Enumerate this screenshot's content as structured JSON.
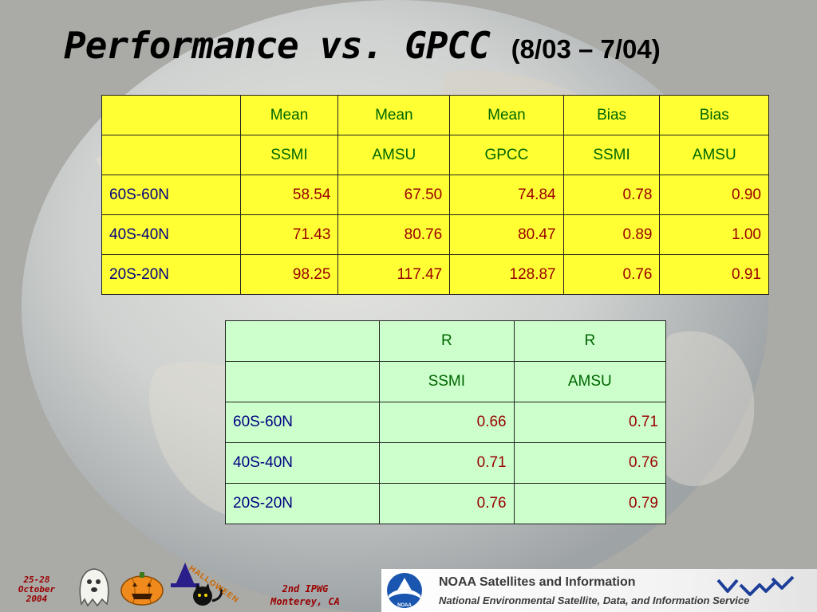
{
  "slide": {
    "title": "Performance vs. GPCC",
    "title_range": "(8/03 – 7/04)"
  },
  "table1": {
    "header_row1": [
      "",
      "Mean",
      "Mean",
      "Mean",
      "Bias",
      "Bias"
    ],
    "header_row2": [
      "",
      "SSMI",
      "AMSU",
      "GPCC",
      "SSMI",
      "AMSU"
    ],
    "rows": [
      {
        "label": "60S-60N",
        "values": [
          "58.54",
          "67.50",
          "74.84",
          "0.78",
          "0.90"
        ]
      },
      {
        "label": "40S-40N",
        "values": [
          "71.43",
          "80.76",
          "80.47",
          "0.89",
          "1.00"
        ]
      },
      {
        "label": "20S-20N",
        "values": [
          "98.25",
          "117.47",
          "128.87",
          "0.76",
          "0.91"
        ]
      }
    ]
  },
  "table2": {
    "header_row1": [
      "",
      "R",
      "R"
    ],
    "header_row2": [
      "",
      "SSMI",
      "AMSU"
    ],
    "rows": [
      {
        "label": "60S-60N",
        "values": [
          "0.66",
          "0.71"
        ]
      },
      {
        "label": "40S-40N",
        "values": [
          "0.71",
          "0.76"
        ]
      },
      {
        "label": "20S-20N",
        "values": [
          "0.76",
          "0.79"
        ]
      }
    ]
  },
  "footer": {
    "date_line1": "25-28",
    "date_line2": "October",
    "date_line3": "2004",
    "conference_line1": "2nd IPWG",
    "conference_line2": "Monterey, CA",
    "halloween_text": "HALLOWEEN",
    "noaa_title": "NOAA Satellites and Information",
    "noaa_subtitle": "National Environmental Satellite, Data, and Information Service",
    "noaa_logo_text": "NOAA"
  },
  "colors": {
    "table1_background": "#ffff33",
    "table2_background": "#ccffcc",
    "header_text": "#006600",
    "row_label_text": "#000080",
    "value_text": "#990000"
  },
  "icons": {
    "background": "earth-globe-image",
    "footer_decor": [
      "ghost-icon",
      "pumpkin-icon",
      "witch-hat-cat-icon"
    ],
    "noaa_logo": "noaa-logo-icon",
    "nesdis_logo": "nesdis-waves-icon"
  }
}
